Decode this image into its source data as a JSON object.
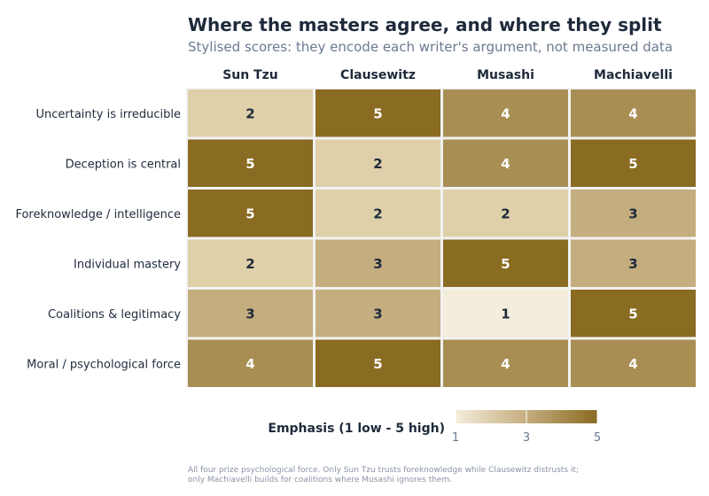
{
  "chart_data": {
    "type": "heatmap",
    "title": "Where the masters agree, and where they split",
    "subtitle": "Stylised scores: they encode each writer's argument, not measured data",
    "columns": [
      "Sun Tzu",
      "Clausewitz",
      "Musashi",
      "Machiavelli"
    ],
    "rows": [
      "Uncertainty is irreducible",
      "Deception is central",
      "Foreknowledge / intelligence",
      "Individual mastery",
      "Coalitions & legitimacy",
      "Moral / psychological force"
    ],
    "values": [
      [
        2,
        5,
        4,
        4
      ],
      [
        5,
        2,
        4,
        5
      ],
      [
        5,
        2,
        2,
        3
      ],
      [
        2,
        3,
        5,
        3
      ],
      [
        3,
        3,
        1,
        5
      ],
      [
        4,
        5,
        4,
        4
      ]
    ],
    "value_range": [
      1,
      5
    ],
    "legend": {
      "title": "Emphasis  (1 low - 5 high)",
      "ticks": [
        1,
        3,
        5
      ],
      "placement": "bottom"
    },
    "color_scale": {
      "1": "#f5eddc",
      "2": "#dfd0aa",
      "3": "#c4ad7e",
      "4": "#a98e54",
      "5": "#8a6b22"
    },
    "caption_lines": [
      "All four prize psychological force. Only Sun Tzu trusts foreknowledge while Clausewitz distrusts it;",
      "only Machiavelli builds for coalitions where Musashi ignores them."
    ]
  }
}
